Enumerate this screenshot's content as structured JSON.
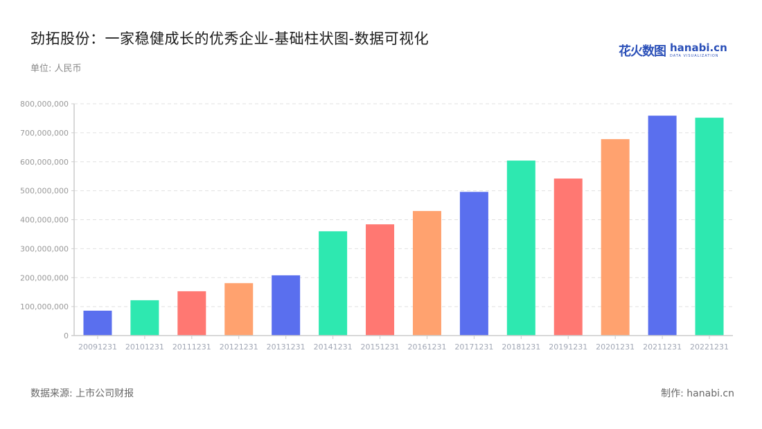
{
  "header": {
    "title": "劲拓股份：一家稳健成长的优秀企业-基础柱状图-数据可视化",
    "unit": "单位: 人民币"
  },
  "logo": {
    "cn": "花火数图",
    "en": "hanabi.cn",
    "tagline": "DATA VISUALIZATION"
  },
  "footer": {
    "source": "数据来源: 上市公司财报",
    "credit": "制作: hanabi.cn"
  },
  "colors": {
    "blue": "#5a6fee",
    "green": "#2ee8b0",
    "red": "#ff7872",
    "orange": "#ffa26f",
    "axis": "#cccccc",
    "grid": "#e0e0e0"
  },
  "chart_data": {
    "type": "bar",
    "title": "劲拓股份：一家稳健成长的优秀企业-基础柱状图-数据可视化",
    "xlabel": "",
    "ylabel": "单位: 人民币",
    "ylim": [
      0,
      800000000
    ],
    "yticks": [
      "0",
      "100,000,000",
      "200,000,000",
      "300,000,000",
      "400,000,000",
      "500,000,000",
      "600,000,000",
      "700,000,000",
      "800,000,000"
    ],
    "grid": true,
    "legend": null,
    "categories": [
      "20091231",
      "20101231",
      "20111231",
      "20121231",
      "20131231",
      "20141231",
      "20151231",
      "20161231",
      "20171231",
      "20181231",
      "20191231",
      "20201231",
      "20211231",
      "20221231"
    ],
    "values": [
      86000000,
      122000000,
      153000000,
      181000000,
      208000000,
      360000000,
      384000000,
      430000000,
      496000000,
      604000000,
      542000000,
      678000000,
      759000000,
      752000000
    ],
    "bar_colors": [
      "#5a6fee",
      "#2ee8b0",
      "#ff7872",
      "#ffa26f",
      "#5a6fee",
      "#2ee8b0",
      "#ff7872",
      "#ffa26f",
      "#5a6fee",
      "#2ee8b0",
      "#ff7872",
      "#ffa26f",
      "#5a6fee",
      "#2ee8b0"
    ]
  }
}
